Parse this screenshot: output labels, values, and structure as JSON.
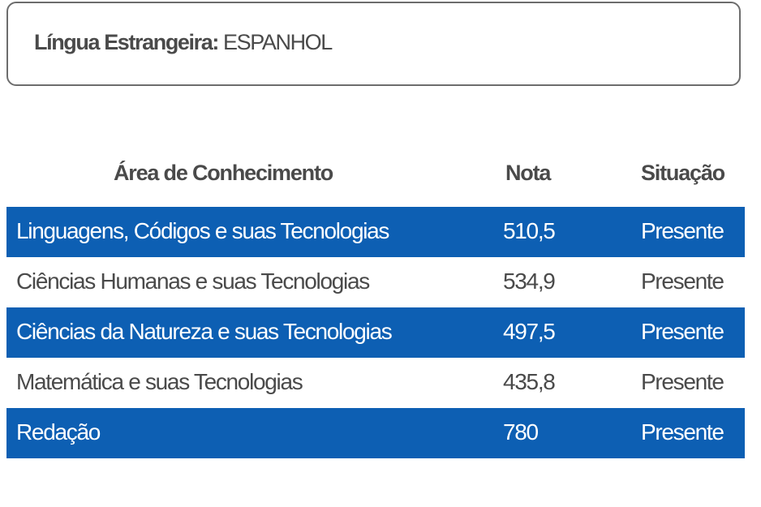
{
  "language_box": {
    "label": "Língua Estrangeira:",
    "value": " ESPANHOL"
  },
  "table": {
    "headers": {
      "area": "Área de Conhecimento",
      "nota": "Nota",
      "situacao": "Situação"
    },
    "rows": [
      {
        "area": "Linguagens, Códigos e suas Tecnologias",
        "nota": "510,5",
        "situacao": "Presente"
      },
      {
        "area": "Ciências Humanas e suas Tecnologias",
        "nota": "534,9",
        "situacao": "Presente"
      },
      {
        "area": "Ciências da Natureza e suas Tecnologias",
        "nota": "497,5",
        "situacao": "Presente"
      },
      {
        "area": "Matemática e suas Tecnologias",
        "nota": "435,8",
        "situacao": "Presente"
      },
      {
        "area": "Redação",
        "nota": "780",
        "situacao": "Presente"
      }
    ]
  },
  "colors": {
    "highlight_row": "#0d5fb3",
    "text": "#4a4a4a"
  }
}
